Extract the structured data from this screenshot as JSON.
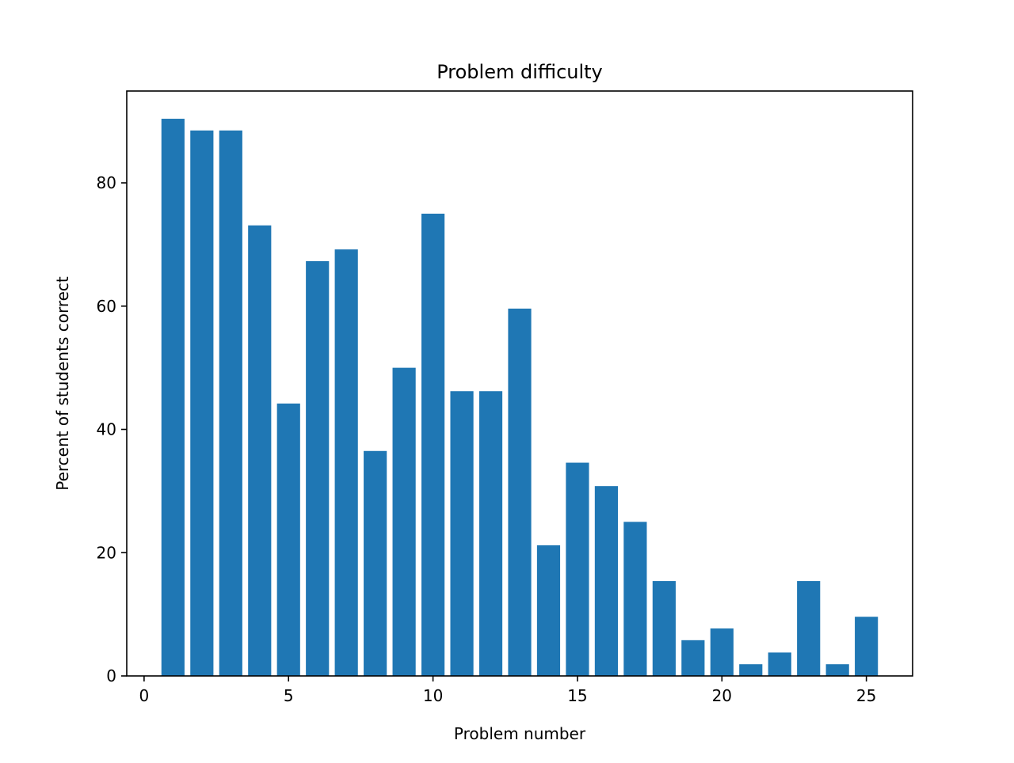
{
  "chart_data": {
    "type": "bar",
    "title": "Problem difficulty",
    "xlabel": "Problem number",
    "ylabel": "Percent of students correct",
    "x": [
      1,
      2,
      3,
      4,
      5,
      6,
      7,
      8,
      9,
      10,
      11,
      12,
      13,
      14,
      15,
      16,
      17,
      18,
      19,
      20,
      21,
      22,
      23,
      24,
      25
    ],
    "values": [
      90.4,
      88.5,
      88.5,
      73.1,
      44.2,
      67.3,
      69.2,
      36.5,
      50.0,
      75.0,
      46.2,
      46.2,
      59.6,
      21.2,
      34.6,
      30.8,
      25.0,
      15.4,
      5.8,
      7.7,
      1.9,
      3.8,
      15.4,
      1.9,
      9.6
    ],
    "xlim": [
      -0.6,
      26.6
    ],
    "ylim": [
      0,
      94.9
    ],
    "xticks": [
      0,
      5,
      10,
      15,
      20,
      25
    ],
    "yticks": [
      0,
      20,
      40,
      60,
      80
    ],
    "bar_color": "#1f77b4",
    "grid": false,
    "legend": "none"
  }
}
